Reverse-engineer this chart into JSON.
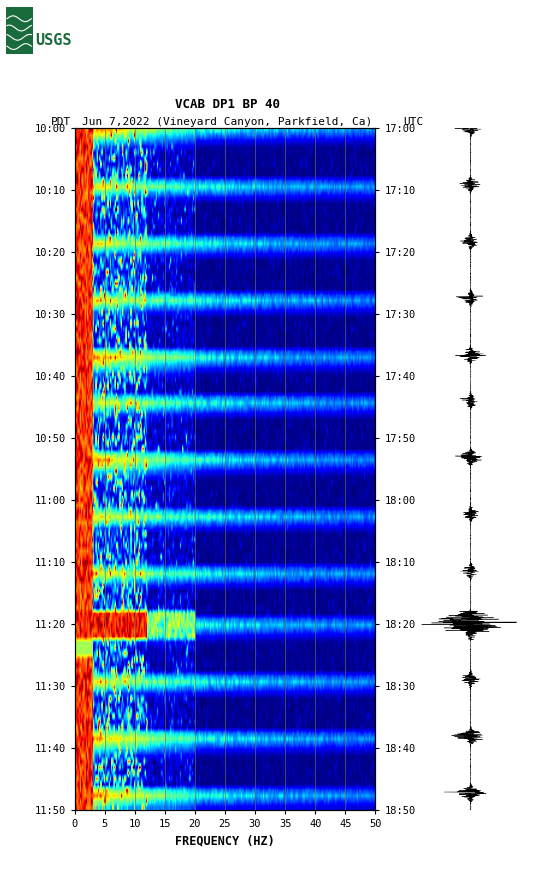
{
  "title_line1": "VCAB DP1 BP 40",
  "title_line2_left": "PDT",
  "title_line2_mid": "Jun 7,2022 (Vineyard Canyon, Parkfield, Ca)",
  "title_line2_right": "UTC",
  "xlabel": "FREQUENCY (HZ)",
  "freq_min": 0,
  "freq_max": 50,
  "freq_ticks": [
    0,
    5,
    10,
    15,
    20,
    25,
    30,
    35,
    40,
    45,
    50
  ],
  "time_ticks_left": [
    "10:00",
    "10:10",
    "10:20",
    "10:30",
    "10:40",
    "10:50",
    "11:00",
    "11:10",
    "11:20",
    "11:30",
    "11:40",
    "11:50"
  ],
  "time_ticks_right": [
    "17:00",
    "17:10",
    "17:20",
    "17:30",
    "17:40",
    "17:50",
    "18:00",
    "18:10",
    "18:20",
    "18:30",
    "18:40",
    "18:50"
  ],
  "n_time": 120,
  "n_freq": 250,
  "background_color": "#ffffff",
  "grid_color": "#707050",
  "grid_lines_x": [
    5,
    10,
    15,
    20,
    25,
    30,
    35,
    40,
    45
  ],
  "usgs_green": "#1a6b3c",
  "colormap": "jet",
  "event_times": [
    0,
    10,
    20,
    30,
    40,
    48,
    58,
    68,
    78,
    87,
    97,
    107,
    117
  ],
  "large_event_time": 87
}
